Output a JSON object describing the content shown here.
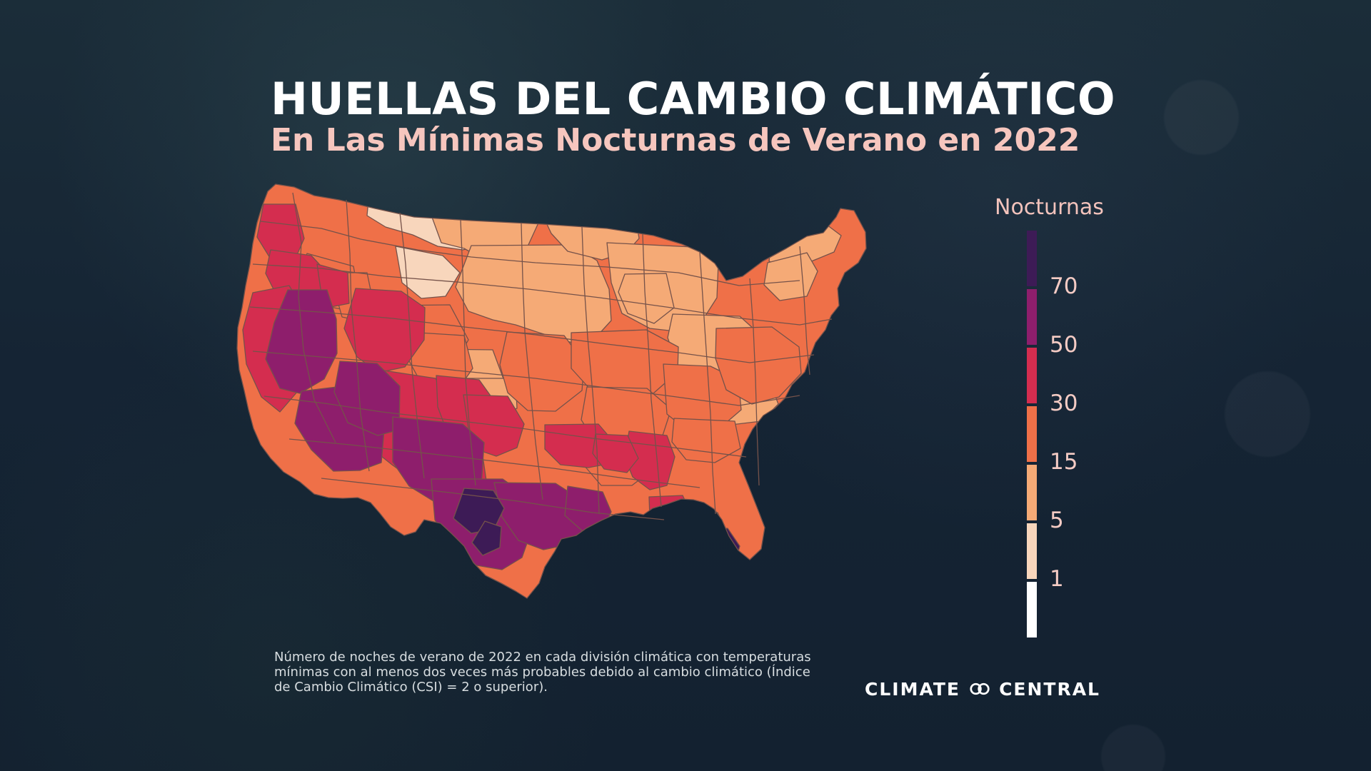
{
  "header": {
    "title": "HUELLAS DEL CAMBIO CLIMÁTICO",
    "subtitle": "En Las Mínimas Nocturnas de Verano en 2022"
  },
  "legend": {
    "title": "Nocturnas",
    "labels": [
      "70",
      "50",
      "30",
      "15",
      "5",
      "1"
    ],
    "colors": [
      "#3d1b56",
      "#8e1e6c",
      "#d42d4f",
      "#ef7048",
      "#f5aa76",
      "#f8d6bc",
      "#ffffff"
    ]
  },
  "footnote": {
    "text": "Número de noches de verano de 2022 en cada división climática con temperaturas mínimas con al menos dos veces más probables debido al cambio climático (Índice de Cambio Climático (CSI) = 2 o superior)."
  },
  "brand": {
    "left": "CLIMATE",
    "right": "CENTRAL"
  },
  "map_legend_classes": {
    "categories": [
      "1",
      "5",
      "15",
      "30",
      "50",
      "70"
    ],
    "palette": [
      "#f8d6bc",
      "#f5aa76",
      "#ef7048",
      "#d42d4f",
      "#8e1e6c",
      "#3d1b56"
    ]
  }
}
